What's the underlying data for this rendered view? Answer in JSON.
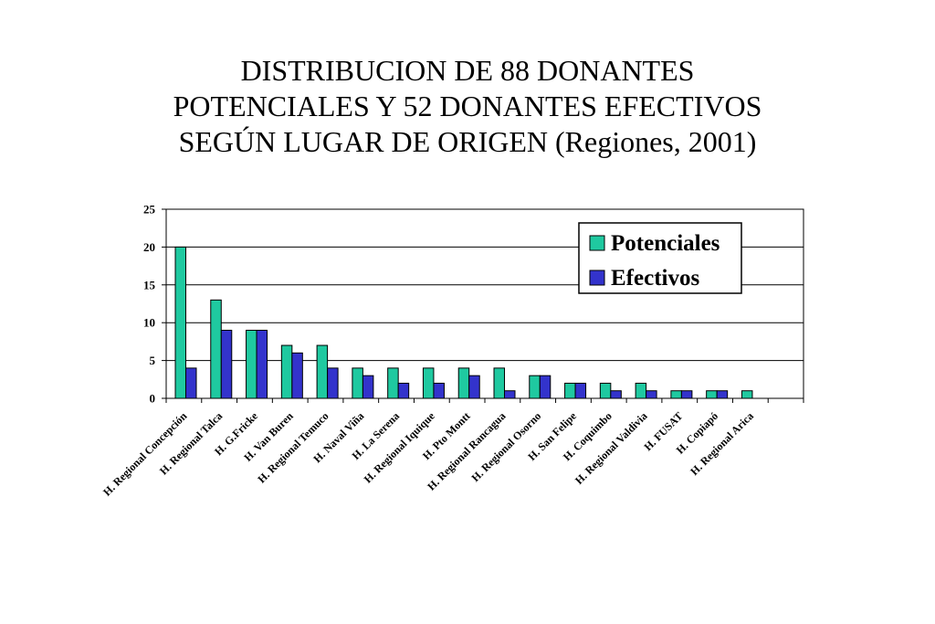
{
  "title": {
    "line1": "DISTRIBUCION DE 88 DONANTES",
    "line2": "POTENCIALES Y 52 DONANTES EFECTIVOS",
    "line3": "SEGÚN LUGAR DE ORIGEN (Regiones, 2001)"
  },
  "chart_data": {
    "type": "bar",
    "title": "DISTRIBUCION DE 88 DONANTES POTENCIALES Y 52 DONANTES EFECTIVOS SEGÚN LUGAR DE ORIGEN (Regiones, 2001)",
    "xlabel": "",
    "ylabel": "",
    "ylim": [
      0,
      25
    ],
    "yticks": [
      0,
      5,
      10,
      15,
      20,
      25
    ],
    "grid": true,
    "legend_position": "top-right",
    "categories": [
      "H. Regional Concepción",
      "H. Regional Talca",
      "H. G.Fricke",
      "H. Van Buren",
      "H. Regional Temuco",
      "H. Naval Viña",
      "H. La Serena",
      "H. Regional Iquique",
      "H. Pto Montt",
      "H. Regional Rancagua",
      "H. Regional Osorno",
      "H. San Felipe",
      "H. Coquimbo",
      "H. Regional Valdivia",
      "H. FUSAT",
      "H. Copiapó",
      "H. Regional Arica",
      ""
    ],
    "series": [
      {
        "name": "Potenciales",
        "color": "#1fc9a0",
        "values": [
          20,
          13,
          9,
          7,
          7,
          4,
          4,
          4,
          4,
          4,
          3,
          2,
          2,
          2,
          1,
          1,
          1,
          0
        ]
      },
      {
        "name": "Efectivos",
        "color": "#3333cc",
        "values": [
          4,
          9,
          9,
          6,
          4,
          3,
          2,
          2,
          3,
          1,
          3,
          2,
          1,
          1,
          1,
          1,
          0,
          0
        ]
      }
    ]
  }
}
